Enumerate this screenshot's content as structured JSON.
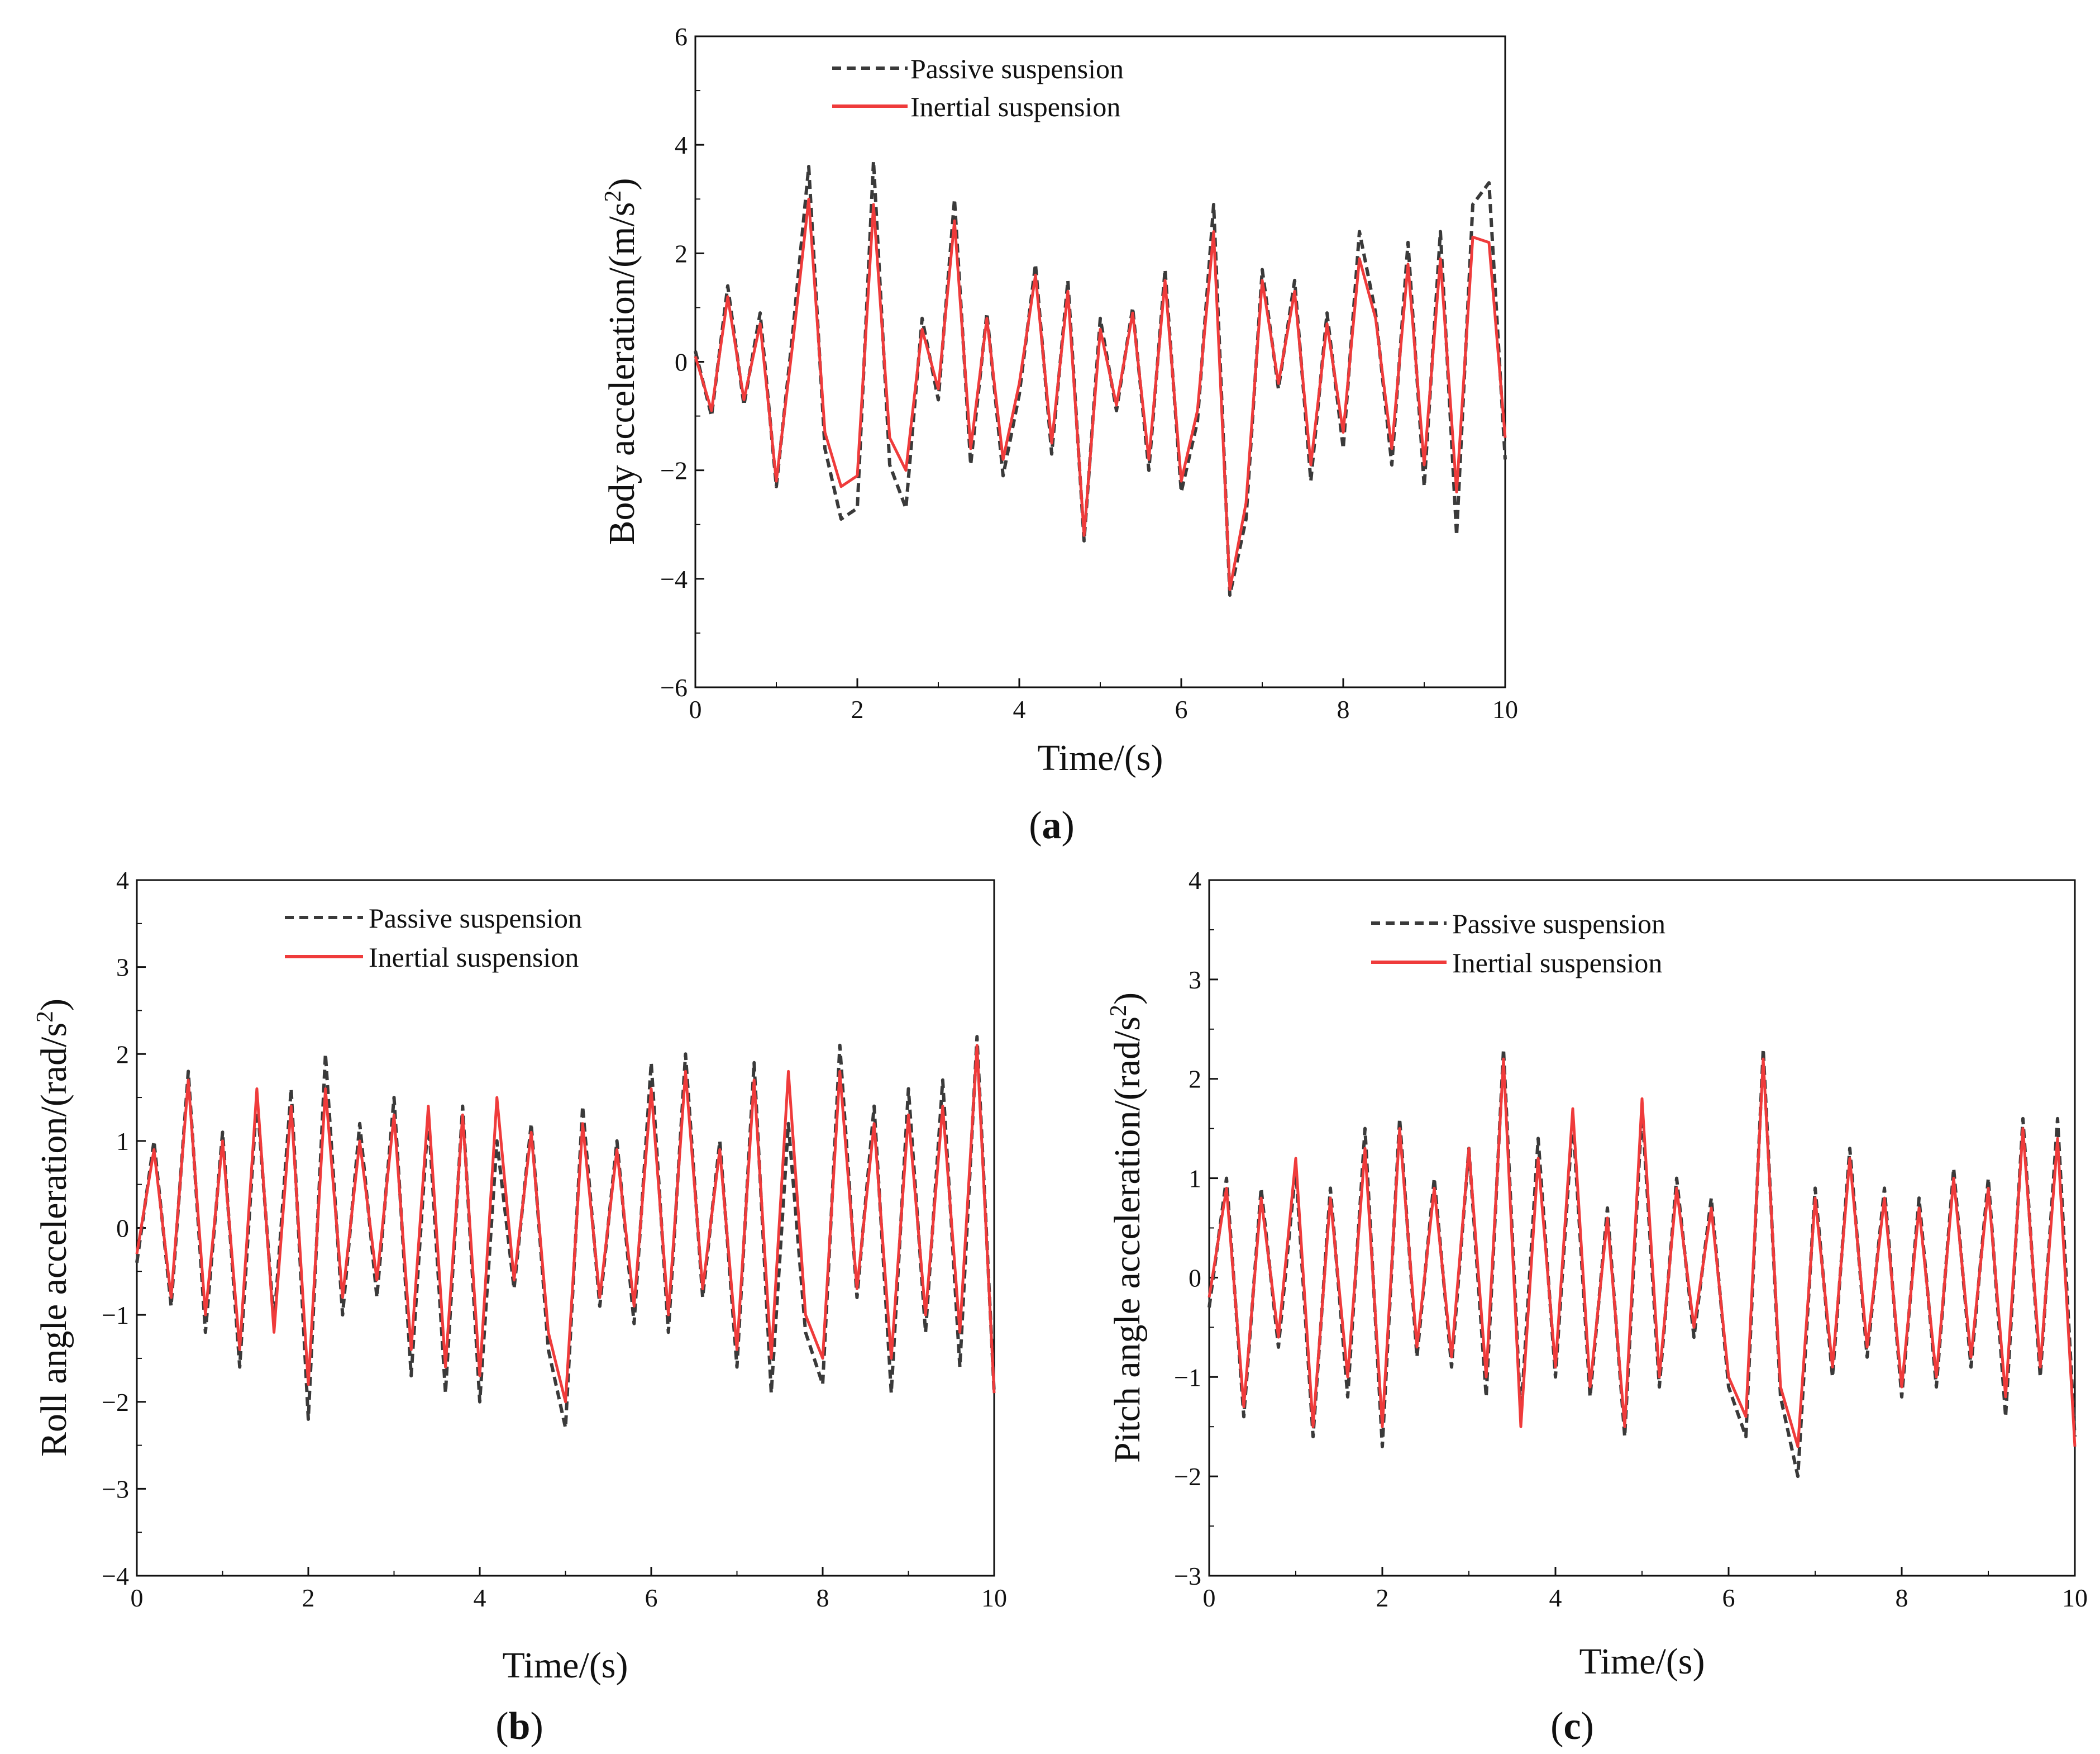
{
  "colors": {
    "passive": "#3a3a3a",
    "inertial": "#ef3b3b",
    "axis": "#111111"
  },
  "chart_data": [
    {
      "id": "a",
      "type": "line",
      "caption": "a",
      "xlabel": "Time/(s)",
      "ylabel_main": "Body acceleration/(m/s",
      "ylabel_sup": "2",
      "ylabel_end": ")",
      "xlim": [
        0,
        10
      ],
      "ylim": [
        -6,
        6
      ],
      "xticks": [
        0,
        2,
        4,
        6,
        8,
        10
      ],
      "yticks": [
        -6,
        -4,
        -2,
        0,
        2,
        4,
        6
      ],
      "ytick_labels": [
        "−6",
        "−4",
        "−2",
        "0",
        "2",
        "4",
        "6"
      ],
      "legend_position": "top-left",
      "series": [
        {
          "name": "Passive suspension",
          "style": "dashed",
          "x": [
            0,
            0.2,
            0.4,
            0.6,
            0.8,
            1.0,
            1.2,
            1.4,
            1.6,
            1.8,
            2.0,
            2.2,
            2.4,
            2.6,
            2.8,
            3.0,
            3.2,
            3.4,
            3.6,
            3.8,
            4.0,
            4.2,
            4.4,
            4.6,
            4.8,
            5.0,
            5.2,
            5.4,
            5.6,
            5.8,
            6.0,
            6.2,
            6.4,
            6.6,
            6.8,
            7.0,
            7.2,
            7.4,
            7.6,
            7.8,
            8.0,
            8.2,
            8.4,
            8.6,
            8.8,
            9.0,
            9.2,
            9.4,
            9.6,
            9.8,
            10.0
          ],
          "y": [
            0.2,
            -1.0,
            1.4,
            -0.8,
            0.9,
            -2.3,
            0.5,
            3.6,
            -1.6,
            -2.9,
            -2.7,
            3.7,
            -1.9,
            -2.7,
            0.8,
            -0.7,
            3.0,
            -1.9,
            0.9,
            -2.1,
            -0.6,
            1.8,
            -1.7,
            1.5,
            -3.3,
            0.8,
            -0.9,
            1.0,
            -2.0,
            1.7,
            -2.4,
            -1.1,
            2.9,
            -4.3,
            -2.9,
            1.7,
            -0.5,
            1.5,
            -2.2,
            0.9,
            -1.6,
            2.4,
            0.9,
            -1.9,
            2.2,
            -2.3,
            2.4,
            -3.2,
            2.9,
            3.3,
            -1.8
          ]
        },
        {
          "name": "Inertial suspension",
          "style": "solid",
          "x": [
            0,
            0.2,
            0.4,
            0.6,
            0.8,
            1.0,
            1.2,
            1.4,
            1.6,
            1.8,
            2.0,
            2.2,
            2.4,
            2.6,
            2.8,
            3.0,
            3.2,
            3.4,
            3.6,
            3.8,
            4.0,
            4.2,
            4.4,
            4.6,
            4.8,
            5.0,
            5.2,
            5.4,
            5.6,
            5.8,
            6.0,
            6.2,
            6.4,
            6.6,
            6.8,
            7.0,
            7.2,
            7.4,
            7.6,
            7.8,
            8.0,
            8.2,
            8.4,
            8.6,
            8.8,
            9.0,
            9.2,
            9.4,
            9.6,
            9.8,
            10.0
          ],
          "y": [
            0.1,
            -0.9,
            1.2,
            -0.7,
            0.7,
            -2.2,
            0.3,
            3.0,
            -1.3,
            -2.3,
            -2.1,
            2.9,
            -1.4,
            -2.0,
            0.6,
            -0.5,
            2.6,
            -1.6,
            0.8,
            -1.8,
            -0.4,
            1.6,
            -1.5,
            1.3,
            -3.2,
            0.6,
            -0.8,
            0.9,
            -1.8,
            1.5,
            -2.2,
            -0.9,
            2.4,
            -4.2,
            -2.6,
            1.5,
            -0.4,
            1.3,
            -1.9,
            0.7,
            -1.3,
            1.9,
            0.8,
            -1.6,
            1.8,
            -1.9,
            1.9,
            -2.4,
            2.3,
            2.2,
            -1.4
          ]
        }
      ]
    },
    {
      "id": "b",
      "type": "line",
      "caption": "b",
      "xlabel": "Time/(s)",
      "ylabel_main": "Roll angle acceleration/(rad/s",
      "ylabel_sup": "2",
      "ylabel_end": ")",
      "xlim": [
        0,
        10
      ],
      "ylim": [
        -4,
        4
      ],
      "xticks": [
        0,
        2,
        4,
        6,
        8,
        10
      ],
      "yticks": [
        -4,
        -3,
        -2,
        -1,
        0,
        1,
        2,
        3,
        4
      ],
      "ytick_labels": [
        "−4",
        "−3",
        "−2",
        "−1",
        "0",
        "1",
        "2",
        "3",
        "4"
      ],
      "legend_position": "top-left",
      "series": [
        {
          "name": "Passive suspension",
          "style": "dashed",
          "x": [
            0,
            0.2,
            0.4,
            0.6,
            0.8,
            1.0,
            1.2,
            1.4,
            1.6,
            1.8,
            2.0,
            2.2,
            2.4,
            2.6,
            2.8,
            3.0,
            3.2,
            3.4,
            3.6,
            3.8,
            4.0,
            4.2,
            4.4,
            4.6,
            4.8,
            5.0,
            5.2,
            5.4,
            5.6,
            5.8,
            6.0,
            6.2,
            6.4,
            6.6,
            6.8,
            7.0,
            7.2,
            7.4,
            7.6,
            7.8,
            8.0,
            8.2,
            8.4,
            8.6,
            8.8,
            9.0,
            9.2,
            9.4,
            9.6,
            9.8,
            10.0
          ],
          "y": [
            -0.4,
            1.0,
            -0.9,
            1.8,
            -1.2,
            1.1,
            -1.6,
            1.5,
            -1.1,
            1.6,
            -2.2,
            2.0,
            -1.0,
            1.2,
            -0.8,
            1.5,
            -1.7,
            1.3,
            -1.9,
            1.4,
            -2.0,
            1.0,
            -0.7,
            1.2,
            -1.4,
            -2.3,
            1.4,
            -0.9,
            1.0,
            -1.1,
            1.9,
            -1.2,
            2.0,
            -0.8,
            1.0,
            -1.6,
            1.9,
            -1.9,
            1.2,
            -1.2,
            -1.8,
            2.1,
            -0.8,
            1.4,
            -1.9,
            1.6,
            -1.2,
            1.7,
            -1.6,
            2.2,
            -1.9
          ]
        },
        {
          "name": "Inertial suspension",
          "style": "solid",
          "x": [
            0,
            0.2,
            0.4,
            0.6,
            0.8,
            1.0,
            1.2,
            1.4,
            1.6,
            1.8,
            2.0,
            2.2,
            2.4,
            2.6,
            2.8,
            3.0,
            3.2,
            3.4,
            3.6,
            3.8,
            4.0,
            4.2,
            4.4,
            4.6,
            4.8,
            5.0,
            5.2,
            5.4,
            5.6,
            5.8,
            6.0,
            6.2,
            6.4,
            6.6,
            6.8,
            7.0,
            7.2,
            7.4,
            7.6,
            7.8,
            8.0,
            8.2,
            8.4,
            8.6,
            8.8,
            9.0,
            9.2,
            9.4,
            9.6,
            9.8,
            10.0
          ],
          "y": [
            -0.3,
            0.9,
            -0.8,
            1.7,
            -1.0,
            1.0,
            -1.4,
            1.6,
            -1.2,
            1.4,
            -1.8,
            1.6,
            -0.8,
            1.0,
            -0.6,
            1.3,
            -1.4,
            1.4,
            -1.6,
            1.3,
            -1.7,
            1.5,
            -0.6,
            1.1,
            -1.2,
            -2.0,
            1.2,
            -0.8,
            0.9,
            -0.9,
            1.6,
            -1.0,
            1.8,
            -0.7,
            0.9,
            -1.4,
            1.7,
            -1.5,
            1.8,
            -1.0,
            -1.5,
            1.8,
            -0.7,
            1.2,
            -1.5,
            1.3,
            -1.0,
            1.4,
            -1.2,
            2.1,
            -1.9
          ]
        }
      ]
    },
    {
      "id": "c",
      "type": "line",
      "caption": "c",
      "xlabel": "Time/(s)",
      "ylabel_main": "Pitch angle acceleration/(rad/s",
      "ylabel_sup": "2",
      "ylabel_end": ")",
      "xlim": [
        0,
        10
      ],
      "ylim": [
        -3,
        4
      ],
      "xticks": [
        0,
        2,
        4,
        6,
        8,
        10
      ],
      "yticks": [
        -3,
        -2,
        -1,
        0,
        1,
        2,
        3,
        4
      ],
      "ytick_labels": [
        "−3",
        "−2",
        "−1",
        "0",
        "1",
        "2",
        "3",
        "4"
      ],
      "legend_position": "top-left",
      "series": [
        {
          "name": "Passive suspension",
          "style": "dashed",
          "x": [
            0,
            0.2,
            0.4,
            0.6,
            0.8,
            1.0,
            1.2,
            1.4,
            1.6,
            1.8,
            2.0,
            2.2,
            2.4,
            2.6,
            2.8,
            3.0,
            3.2,
            3.4,
            3.6,
            3.8,
            4.0,
            4.2,
            4.4,
            4.6,
            4.8,
            5.0,
            5.2,
            5.4,
            5.6,
            5.8,
            6.0,
            6.2,
            6.4,
            6.6,
            6.8,
            7.0,
            7.2,
            7.4,
            7.6,
            7.8,
            8.0,
            8.2,
            8.4,
            8.6,
            8.8,
            9.0,
            9.2,
            9.4,
            9.6,
            9.8,
            10.0
          ],
          "y": [
            -0.3,
            1.0,
            -1.4,
            0.9,
            -0.7,
            1.1,
            -1.6,
            0.9,
            -1.2,
            1.5,
            -1.7,
            1.6,
            -0.8,
            1.0,
            -0.9,
            1.3,
            -1.2,
            2.3,
            -1.4,
            1.4,
            -1.0,
            1.6,
            -1.2,
            0.7,
            -1.6,
            1.7,
            -1.1,
            1.0,
            -0.6,
            0.8,
            -1.1,
            -1.6,
            2.3,
            -1.2,
            -2.0,
            0.9,
            -1.0,
            1.3,
            -0.8,
            0.9,
            -1.2,
            0.8,
            -1.1,
            1.1,
            -0.9,
            1.0,
            -1.4,
            1.6,
            -1.0,
            1.6,
            -1.6
          ]
        },
        {
          "name": "Inertial suspension",
          "style": "solid",
          "x": [
            0,
            0.2,
            0.4,
            0.6,
            0.8,
            1.0,
            1.2,
            1.4,
            1.6,
            1.8,
            2.0,
            2.2,
            2.4,
            2.6,
            2.8,
            3.0,
            3.2,
            3.4,
            3.6,
            3.8,
            4.0,
            4.2,
            4.4,
            4.6,
            4.8,
            5.0,
            5.2,
            5.4,
            5.6,
            5.8,
            6.0,
            6.2,
            6.4,
            6.6,
            6.8,
            7.0,
            7.2,
            7.4,
            7.6,
            7.8,
            8.0,
            8.2,
            8.4,
            8.6,
            8.8,
            9.0,
            9.2,
            9.4,
            9.6,
            9.8,
            10.0
          ],
          "y": [
            -0.2,
            0.9,
            -1.3,
            0.8,
            -0.6,
            1.2,
            -1.5,
            0.8,
            -1.0,
            1.3,
            -1.5,
            1.5,
            -0.7,
            0.9,
            -0.8,
            1.3,
            -1.0,
            2.2,
            -1.5,
            1.2,
            -0.9,
            1.7,
            -1.1,
            0.6,
            -1.5,
            1.8,
            -1.0,
            0.9,
            -0.5,
            0.7,
            -1.0,
            -1.4,
            2.2,
            -1.1,
            -1.7,
            0.8,
            -0.9,
            1.2,
            -0.7,
            0.8,
            -1.1,
            0.7,
            -1.0,
            1.0,
            -0.8,
            0.9,
            -1.2,
            1.5,
            -0.9,
            1.4,
            -1.7
          ]
        }
      ]
    }
  ]
}
